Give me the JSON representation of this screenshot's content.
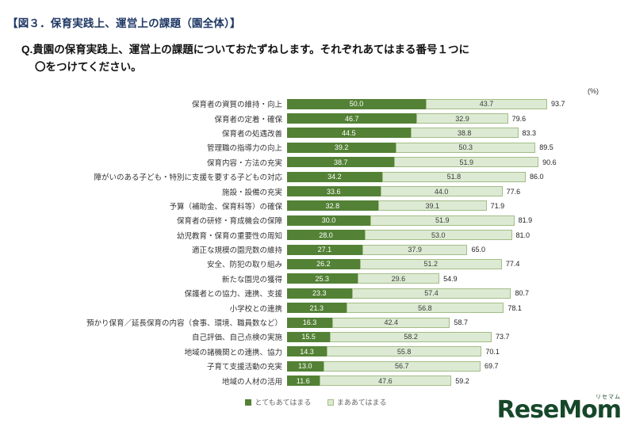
{
  "figure": {
    "title": "【図３．保育実践上、運営上の課題（園全体）】"
  },
  "question": {
    "line1": "Q.貴園の保育実践上、運営上の課題についておたずねします。それぞれあてはまる番号１つに",
    "line2": "〇をつけてください。"
  },
  "axis": {
    "percent_label": "(%)"
  },
  "legend": [
    {
      "label": "とてもあてはまる",
      "color": "#538135"
    },
    {
      "label": "まああてはまる",
      "color": "#dcead3"
    }
  ],
  "logo": {
    "text": "ReseMom",
    "sub": "リセマム"
  },
  "chart_data": {
    "type": "bar",
    "orientation": "horizontal",
    "stacked": true,
    "title": "保育実践上、運営上の課題（園全体）",
    "unit": "%",
    "xlim": [
      0,
      100
    ],
    "legend_position": "bottom",
    "grid": false,
    "categories": [
      "保育者の資質の維持・向上",
      "保育者の定着・確保",
      "保育者の処遇改善",
      "管理職の指導力の向上",
      "保育内容・方法の充実",
      "障がいのある子ども・特別に支援を要する子どもの対応",
      "施設・設備の充実",
      "予算（補助金、保育料等）の確保",
      "保育者の研修・育成機会の保障",
      "幼児教育・保育の重要性の周知",
      "適正な規模の園児数の維持",
      "安全、防犯の取り組み",
      "新たな園児の獲得",
      "保護者との協力、連携、支援",
      "小学校との連携",
      "預かり保育／延長保育の内容（食事、環境、職員数など）",
      "自己評価、自己点検の実施",
      "地域の諸機関との連携、協力",
      "子育て支援活動の充実",
      "地域の人材の活用"
    ],
    "series": [
      {
        "name": "とてもあてはまる",
        "color": "#538135",
        "text_color": "#ffffff",
        "values": [
          50.0,
          46.7,
          44.5,
          39.2,
          38.7,
          34.2,
          33.6,
          32.8,
          30.0,
          28.0,
          27.1,
          26.2,
          25.3,
          23.3,
          21.3,
          16.3,
          15.5,
          14.3,
          13.0,
          11.6
        ]
      },
      {
        "name": "まああてはまる",
        "color": "#dcead3",
        "text_color": "#3a3a3a",
        "values": [
          43.7,
          32.9,
          38.8,
          50.3,
          51.9,
          51.8,
          44.0,
          39.1,
          51.9,
          53.0,
          37.9,
          51.2,
          29.6,
          57.4,
          56.8,
          42.4,
          58.2,
          55.8,
          56.7,
          47.6
        ]
      }
    ],
    "totals": [
      93.7,
      79.6,
      83.3,
      89.5,
      90.6,
      86.0,
      77.6,
      71.9,
      81.9,
      81.0,
      65.0,
      77.4,
      54.9,
      80.7,
      78.1,
      58.7,
      73.7,
      70.1,
      69.7,
      59.2
    ]
  }
}
